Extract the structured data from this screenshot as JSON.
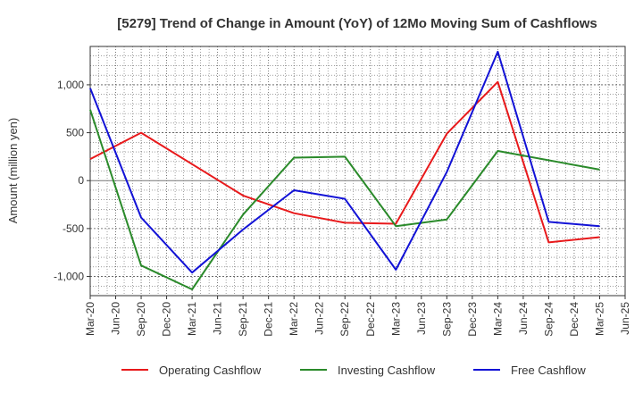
{
  "chart_data": {
    "type": "line",
    "title": "[5279]  Trend of Change in Amount (YoY) of 12Mo Moving Sum of Cashflows",
    "xlabel": "",
    "ylabel": "Amount (million yen)",
    "ylim": [
      -1200,
      1400
    ],
    "yticks": [
      -1000,
      -500,
      0,
      500,
      1000
    ],
    "ytick_labels": [
      "-1,000",
      "-500",
      "0",
      "500",
      "1,000"
    ],
    "categories": [
      "Mar-20",
      "Jun-20",
      "Sep-20",
      "Dec-20",
      "Mar-21",
      "Jun-21",
      "Sep-21",
      "Dec-21",
      "Mar-22",
      "Jun-22",
      "Sep-22",
      "Dec-22",
      "Mar-23",
      "Jun-23",
      "Sep-23",
      "Dec-23",
      "Mar-24",
      "Jun-24",
      "Sep-24",
      "Dec-24",
      "Mar-25",
      "Jun-25"
    ],
    "grid": true,
    "legend_position": "bottom",
    "series": [
      {
        "name": "Operating Cashflow",
        "color": "#e8191b",
        "points": [
          {
            "x": "Mar-20",
            "y": 225
          },
          {
            "x": "Sep-20",
            "y": 500
          },
          {
            "x": "Sep-21",
            "y": -155
          },
          {
            "x": "Mar-22",
            "y": -340
          },
          {
            "x": "Sep-22",
            "y": -440
          },
          {
            "x": "Mar-23",
            "y": -450
          },
          {
            "x": "Sep-23",
            "y": 490
          },
          {
            "x": "Mar-24",
            "y": 1030
          },
          {
            "x": "Sep-24",
            "y": -645
          },
          {
            "x": "Mar-25",
            "y": -590
          }
        ]
      },
      {
        "name": "Investing Cashflow",
        "color": "#2a8a2a",
        "points": [
          {
            "x": "Mar-20",
            "y": 740
          },
          {
            "x": "Sep-20",
            "y": -885
          },
          {
            "x": "Mar-21",
            "y": -1135
          },
          {
            "x": "Sep-21",
            "y": -355
          },
          {
            "x": "Mar-22",
            "y": 240
          },
          {
            "x": "Sep-22",
            "y": 250
          },
          {
            "x": "Mar-23",
            "y": -475
          },
          {
            "x": "Sep-23",
            "y": -405
          },
          {
            "x": "Mar-24",
            "y": 310
          },
          {
            "x": "Mar-25",
            "y": 115
          }
        ]
      },
      {
        "name": "Free Cashflow",
        "color": "#1212d6",
        "points": [
          {
            "x": "Mar-20",
            "y": 965
          },
          {
            "x": "Sep-20",
            "y": -385
          },
          {
            "x": "Mar-21",
            "y": -960
          },
          {
            "x": "Sep-21",
            "y": -510
          },
          {
            "x": "Mar-22",
            "y": -100
          },
          {
            "x": "Sep-22",
            "y": -190
          },
          {
            "x": "Mar-23",
            "y": -930
          },
          {
            "x": "Sep-23",
            "y": 90
          },
          {
            "x": "Mar-24",
            "y": 1345
          },
          {
            "x": "Sep-24",
            "y": -430
          },
          {
            "x": "Mar-25",
            "y": -475
          }
        ]
      }
    ]
  }
}
